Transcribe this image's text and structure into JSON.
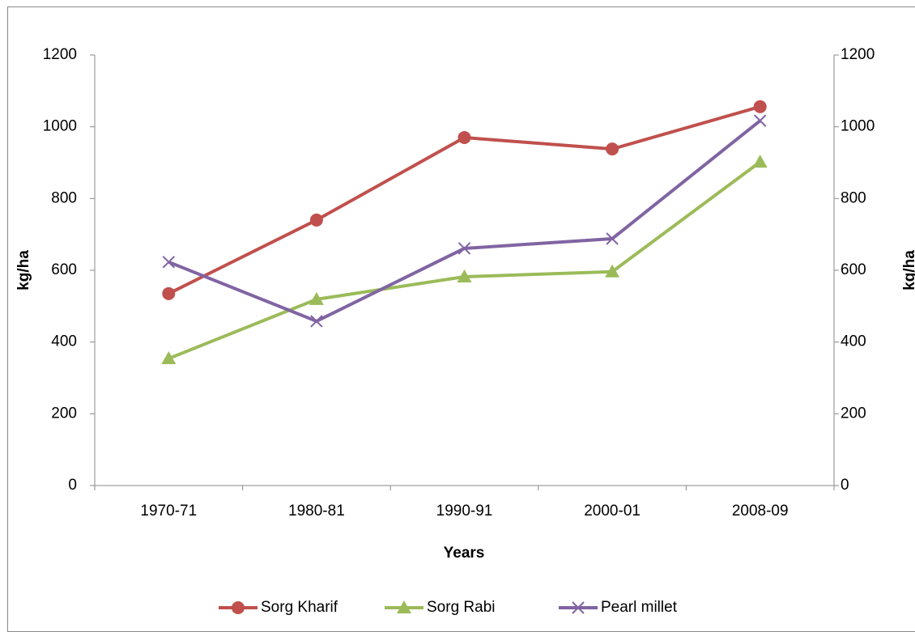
{
  "chart_data": {
    "type": "line",
    "xlabel": "Years",
    "ylabel": "kg/ha",
    "y2label": "kg/ha",
    "categories": [
      "1970-71",
      "1980-81",
      "1990-91",
      "2000-01",
      "2008-09"
    ],
    "series": [
      {
        "name": "Sorg Kharif",
        "color": "#c0504d",
        "marker": "circle",
        "values": [
          535,
          740,
          970,
          938,
          1056
        ]
      },
      {
        "name": "Sorg Rabi",
        "color": "#9bbb59",
        "marker": "triangle",
        "values": [
          354,
          519,
          582,
          596,
          902
        ]
      },
      {
        "name": "Pearl millet",
        "color": "#8064a2",
        "marker": "x",
        "values": [
          623,
          458,
          661,
          688,
          1017
        ]
      }
    ],
    "ylim": [
      0,
      1200
    ],
    "yticks": [
      0,
      200,
      400,
      600,
      800,
      1000,
      1200
    ],
    "y2lim": [
      0,
      1200
    ],
    "y2ticks": [
      0,
      200,
      400,
      600,
      800,
      1000,
      1200
    ],
    "legend": "bottom"
  }
}
